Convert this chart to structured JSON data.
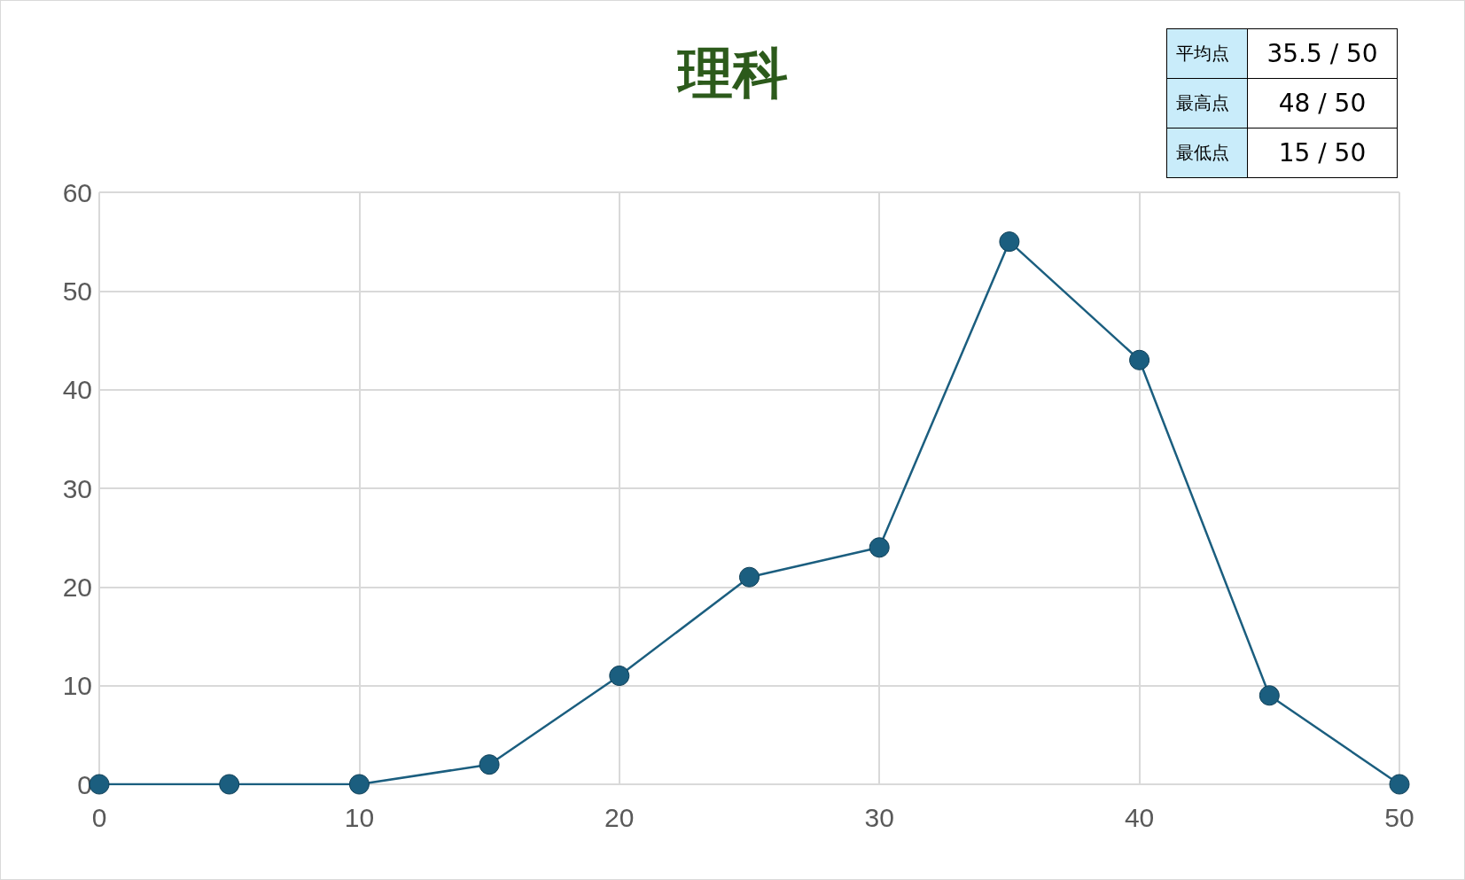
{
  "chart_data": {
    "type": "line",
    "title": "理科",
    "x": [
      0,
      5,
      10,
      15,
      20,
      25,
      30,
      35,
      40,
      45,
      50
    ],
    "series": [
      {
        "color": "#1b5e7f",
        "values": [
          0,
          0,
          0,
          2,
          11,
          21,
          24,
          55,
          43,
          9,
          0
        ]
      }
    ],
    "xlim": [
      0,
      50
    ],
    "xticks": [
      0,
      10,
      20,
      30,
      40,
      50
    ],
    "ylim": [
      0,
      60
    ],
    "yticks": [
      0,
      10,
      20,
      30,
      40,
      50,
      60
    ],
    "grid": true,
    "marker": "circle",
    "line_style": "solid",
    "annotations": [
      "平均点",
      "35.5 / 50",
      "最高点",
      "48 / 50",
      "最低点",
      "15 / 50"
    ]
  }
}
